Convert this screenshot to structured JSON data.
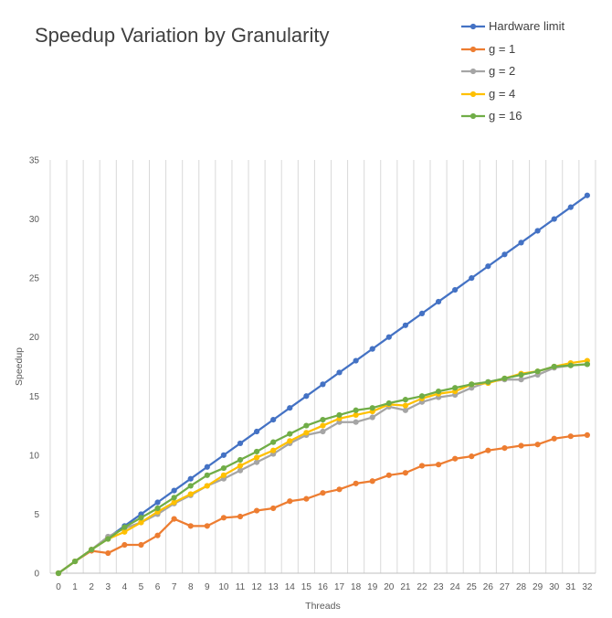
{
  "chart_data": {
    "type": "line",
    "title": "Speedup Variation by Granularity",
    "xlabel": "Threads",
    "ylabel": "Speedup",
    "x": [
      0,
      1,
      2,
      3,
      4,
      5,
      6,
      7,
      8,
      9,
      10,
      11,
      12,
      13,
      14,
      15,
      16,
      17,
      18,
      19,
      20,
      21,
      22,
      23,
      24,
      25,
      26,
      27,
      28,
      29,
      30,
      31,
      32
    ],
    "ylim": [
      0,
      35
    ],
    "yticks": [
      0,
      5,
      10,
      15,
      20,
      25,
      30,
      35
    ],
    "grid": "vertical",
    "legend": "top-right",
    "series": [
      {
        "name": "Hardware limit",
        "color": "#4472C4",
        "values": [
          0,
          1,
          2,
          3,
          4,
          5,
          6,
          7,
          8,
          9,
          10,
          11,
          12,
          13,
          14,
          15,
          16,
          17,
          18,
          19,
          20,
          21,
          22,
          23,
          24,
          25,
          26,
          27,
          28,
          29,
          30,
          31,
          32
        ]
      },
      {
        "name": "g = 1",
        "color": "#ED7D31",
        "values": [
          0,
          1,
          1.9,
          1.7,
          2.4,
          2.4,
          3.2,
          4.6,
          4.0,
          4.0,
          4.7,
          4.8,
          5.3,
          5.5,
          6.1,
          6.3,
          6.8,
          7.1,
          7.6,
          7.8,
          8.3,
          8.5,
          9.1,
          9.2,
          9.7,
          9.9,
          10.4,
          10.6,
          10.8,
          10.9,
          11.4,
          11.6,
          11.7
        ]
      },
      {
        "name": "g = 2",
        "color": "#A5A5A5",
        "values": [
          0,
          1,
          2,
          3.1,
          3.8,
          4.3,
          5.0,
          5.9,
          6.6,
          7.4,
          8.0,
          8.7,
          9.4,
          10.1,
          11.0,
          11.7,
          12.0,
          12.8,
          12.8,
          13.2,
          14.1,
          13.8,
          14.5,
          14.9,
          15.1,
          15.7,
          16.2,
          16.4,
          16.4,
          16.8,
          17.4,
          17.6,
          17.7
        ]
      },
      {
        "name": "g = 4",
        "color": "#FFC000",
        "values": [
          0,
          1,
          2,
          2.9,
          3.5,
          4.3,
          5.2,
          6.0,
          6.7,
          7.4,
          8.3,
          9.1,
          9.8,
          10.4,
          11.2,
          11.9,
          12.5,
          13.1,
          13.4,
          13.7,
          14.3,
          14.2,
          14.8,
          15.2,
          15.4,
          16.0,
          16.1,
          16.5,
          16.9,
          17.1,
          17.5,
          17.8,
          18.0
        ]
      },
      {
        "name": "g = 16",
        "color": "#70AD47",
        "values": [
          0,
          1,
          2,
          2.9,
          3.9,
          4.7,
          5.5,
          6.4,
          7.4,
          8.3,
          8.9,
          9.6,
          10.3,
          11.1,
          11.8,
          12.5,
          13.0,
          13.4,
          13.8,
          14.0,
          14.4,
          14.7,
          15.0,
          15.4,
          15.7,
          16.0,
          16.2,
          16.5,
          16.8,
          17.1,
          17.5,
          17.6,
          17.7
        ]
      }
    ]
  }
}
